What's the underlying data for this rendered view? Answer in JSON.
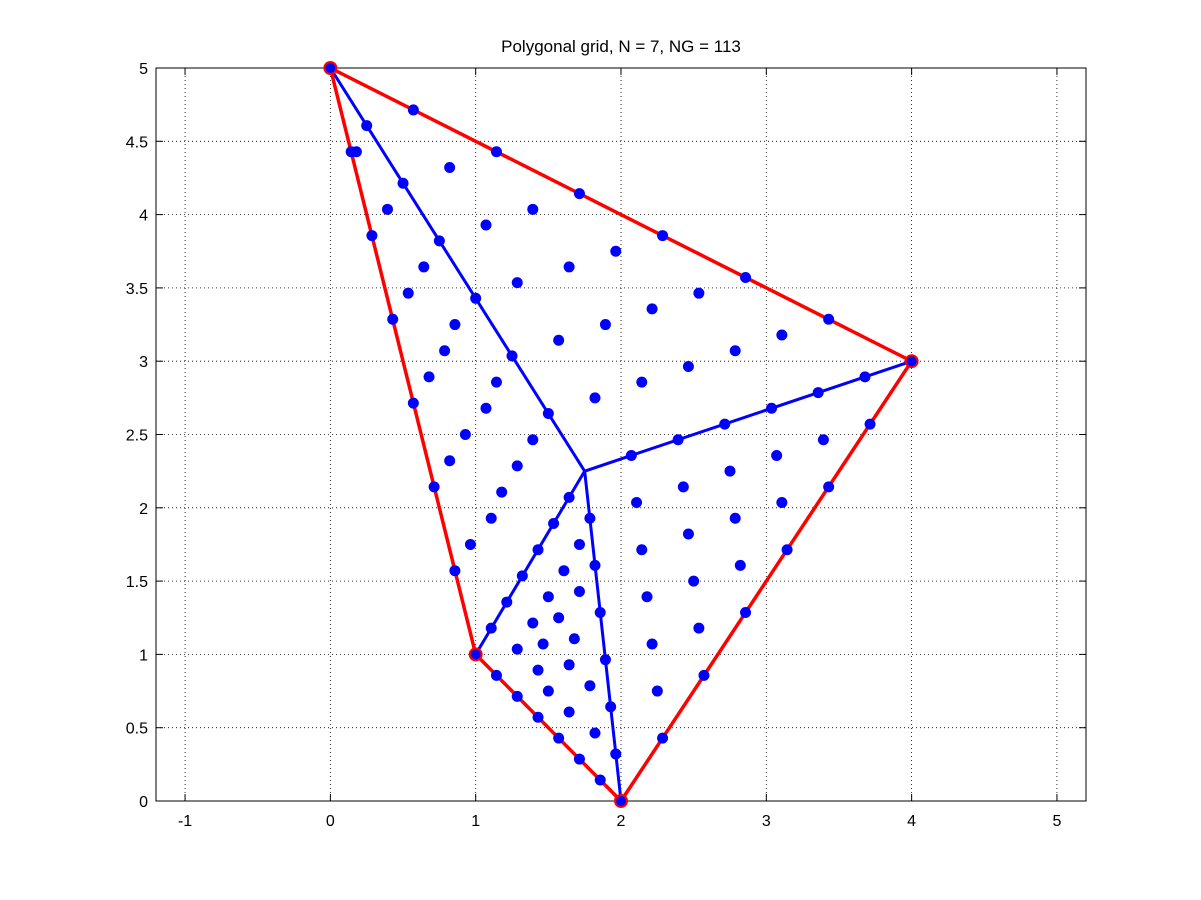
{
  "chart_data": {
    "type": "scatter",
    "title": "Polygonal grid, N = 7, NG = 113",
    "xlabel": "",
    "ylabel": "",
    "xlim": [
      -1.2,
      5.2
    ],
    "ylim": [
      0,
      5
    ],
    "grid": true,
    "x_ticks": [
      -1,
      0,
      1,
      2,
      3,
      4,
      5
    ],
    "x_tick_labels": [
      "-1",
      "0",
      "1",
      "2",
      "3",
      "4",
      "5"
    ],
    "y_ticks": [
      0,
      0.5,
      1,
      1.5,
      2,
      2.5,
      3,
      3.5,
      4,
      4.5,
      5
    ],
    "y_tick_labels": [
      "0",
      "0.5",
      "1",
      "1.5",
      "2",
      "2.5",
      "3",
      "3.5",
      "4",
      "4.5",
      "5"
    ],
    "polygon": {
      "color": "#ff0000",
      "vertices": [
        [
          1,
          1
        ],
        [
          2,
          0
        ],
        [
          4,
          3
        ],
        [
          0,
          5
        ]
      ]
    },
    "centroid": [
      1.75,
      2.25
    ],
    "spokes_color": "#0000ff",
    "grid_points_color": "#0000ff",
    "grid_points": [
      [
        0,
        5
      ],
      [
        0.571,
        4.714
      ],
      [
        1.143,
        4.429
      ],
      [
        1.714,
        4.143
      ],
      [
        2.286,
        3.857
      ],
      [
        2.857,
        3.571
      ],
      [
        3.429,
        3.286
      ],
      [
        4,
        3
      ],
      [
        3.714,
        2.571
      ],
      [
        3.429,
        2.143
      ],
      [
        3.143,
        1.714
      ],
      [
        2.857,
        1.286
      ],
      [
        2.571,
        0.857
      ],
      [
        2.286,
        0.429
      ],
      [
        2,
        0
      ],
      [
        1.857,
        0.143
      ],
      [
        1.714,
        0.286
      ],
      [
        1.571,
        0.429
      ],
      [
        1.429,
        0.571
      ],
      [
        1.286,
        0.714
      ],
      [
        1.143,
        0.857
      ],
      [
        1,
        1
      ],
      [
        0.857,
        1.571
      ],
      [
        0.714,
        2.143
      ],
      [
        0.571,
        2.714
      ],
      [
        0.429,
        3.286
      ],
      [
        0.286,
        3.857
      ],
      [
        0.143,
        4.429
      ],
      [
        0.25,
        4.607
      ],
      [
        0.5,
        4.214
      ],
      [
        0.75,
        3.821
      ],
      [
        1,
        3.429
      ],
      [
        1.25,
        3.036
      ],
      [
        1.5,
        2.643
      ],
      [
        2.071,
        2.357
      ],
      [
        2.393,
        2.464
      ],
      [
        2.714,
        2.571
      ],
      [
        3.036,
        2.679
      ],
      [
        3.357,
        2.786
      ],
      [
        3.679,
        2.893
      ],
      [
        1.786,
        1.929
      ],
      [
        1.821,
        1.607
      ],
      [
        1.857,
        1.286
      ],
      [
        1.893,
        0.964
      ],
      [
        1.929,
        0.643
      ],
      [
        1.964,
        0.321
      ],
      [
        1.107,
        1.179
      ],
      [
        1.214,
        1.357
      ],
      [
        1.321,
        1.536
      ],
      [
        1.429,
        1.714
      ],
      [
        1.536,
        1.893
      ],
      [
        1.643,
        2.071
      ],
      [
        0.179,
        4.429
      ],
      [
        0.393,
        4.036
      ],
      [
        0.821,
        4.321
      ],
      [
        1.071,
        3.929
      ],
      [
        1.393,
        4.036
      ],
      [
        0.643,
        3.643
      ],
      [
        0.536,
        3.464
      ],
      [
        0.857,
        3.25
      ],
      [
        0.786,
        3.071
      ],
      [
        0.679,
        2.893
      ],
      [
        1.286,
        3.536
      ],
      [
        1.643,
        3.643
      ],
      [
        1.964,
        3.75
      ],
      [
        2.214,
        3.357
      ],
      [
        2.536,
        3.464
      ],
      [
        1.571,
        3.143
      ],
      [
        1.893,
        3.25
      ],
      [
        3.107,
        3.179
      ],
      [
        2.786,
        3.071
      ],
      [
        2.464,
        2.964
      ],
      [
        2.143,
        2.857
      ],
      [
        1.821,
        2.75
      ],
      [
        1.143,
        2.857
      ],
      [
        1.071,
        2.679
      ],
      [
        0.929,
        2.5
      ],
      [
        1.393,
        2.464
      ],
      [
        1.286,
        2.286
      ],
      [
        0.821,
        2.321
      ],
      [
        1.179,
        2.107
      ],
      [
        1.107,
        1.929
      ],
      [
        0.964,
        1.75
      ],
      [
        3.393,
        2.464
      ],
      [
        3.071,
        2.357
      ],
      [
        2.75,
        2.25
      ],
      [
        2.429,
        2.143
      ],
      [
        2.107,
        2.036
      ],
      [
        3.107,
        2.036
      ],
      [
        2.786,
        1.929
      ],
      [
        2.464,
        1.821
      ],
      [
        2.143,
        1.714
      ],
      [
        2.821,
        1.607
      ],
      [
        2.5,
        1.5
      ],
      [
        2.179,
        1.393
      ],
      [
        2.536,
        1.179
      ],
      [
        2.214,
        1.071
      ],
      [
        2.25,
        0.75
      ],
      [
        1.714,
        1.75
      ],
      [
        1.607,
        1.571
      ],
      [
        1.5,
        1.393
      ],
      [
        1.393,
        1.214
      ],
      [
        1.714,
        1.429
      ],
      [
        1.571,
        1.25
      ],
      [
        1.464,
        1.071
      ],
      [
        1.679,
        1.107
      ],
      [
        1.286,
        1.036
      ],
      [
        1.643,
        0.929
      ],
      [
        1.429,
        0.893
      ],
      [
        1.786,
        0.786
      ],
      [
        1.5,
        0.75
      ],
      [
        1.643,
        0.607
      ],
      [
        1.821,
        0.464
      ]
    ]
  }
}
